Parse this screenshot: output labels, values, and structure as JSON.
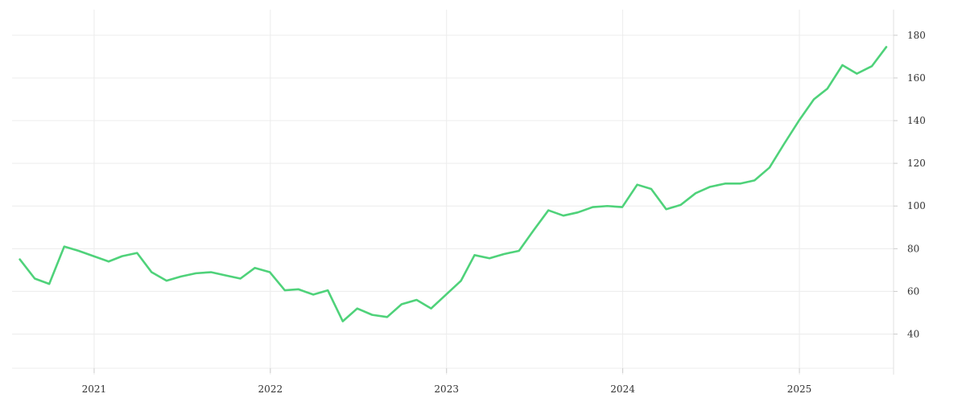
{
  "chart_data": {
    "type": "line",
    "title": "",
    "xlabel": "",
    "ylabel": "",
    "x_ticks": [
      "2021",
      "2022",
      "2023",
      "2024",
      "2025"
    ],
    "y_ticks": [
      40,
      60,
      80,
      100,
      120,
      140,
      160,
      180
    ],
    "ylim": [
      24,
      192
    ],
    "xlim": [
      "2020-07-15",
      "2025-07-15"
    ],
    "grid": true,
    "y_axis_position": "right",
    "line_color": "#4fd27a",
    "series": [
      {
        "x": [
          "2020-07-31",
          "2020-08-31",
          "2020-09-30",
          "2020-10-31",
          "2020-11-30",
          "2020-12-31",
          "2021-01-31",
          "2021-02-28",
          "2021-03-31",
          "2021-04-30",
          "2021-05-31",
          "2021-06-30",
          "2021-07-31",
          "2021-08-31",
          "2021-09-30",
          "2021-10-31",
          "2021-11-30",
          "2021-12-31",
          "2022-01-31",
          "2022-02-28",
          "2022-03-31",
          "2022-04-30",
          "2022-05-31",
          "2022-06-30",
          "2022-07-31",
          "2022-08-31",
          "2022-09-30",
          "2022-10-31",
          "2022-11-30",
          "2022-12-31",
          "2023-01-31",
          "2023-02-28",
          "2023-03-31",
          "2023-04-30",
          "2023-05-31",
          "2023-06-30",
          "2023-07-31",
          "2023-08-31",
          "2023-09-30",
          "2023-10-31",
          "2023-11-30",
          "2023-12-31",
          "2024-01-31",
          "2024-02-29",
          "2024-03-31",
          "2024-04-30",
          "2024-05-31",
          "2024-06-30",
          "2024-07-31",
          "2024-08-31",
          "2024-09-30",
          "2024-10-31",
          "2024-11-30",
          "2024-12-31",
          "2025-01-31",
          "2025-02-28",
          "2025-03-31",
          "2025-04-30",
          "2025-05-31",
          "2025-06-30"
        ],
        "values": [
          75,
          66,
          63.5,
          81,
          79,
          76.5,
          74,
          76.5,
          78,
          69,
          65,
          67,
          68.5,
          69,
          67.5,
          66,
          71,
          69,
          60.5,
          61,
          58.5,
          60.5,
          46,
          52,
          49,
          48,
          54,
          56,
          52,
          58.5,
          65,
          77,
          75.5,
          77.5,
          79,
          88.5,
          98,
          95.5,
          97,
          99.5,
          100,
          99.5,
          110,
          108,
          98.5,
          100.5,
          106,
          109,
          110.5,
          110.5,
          112,
          118,
          129,
          140,
          150,
          155,
          166,
          162,
          165.5,
          174.5
        ]
      }
    ]
  }
}
